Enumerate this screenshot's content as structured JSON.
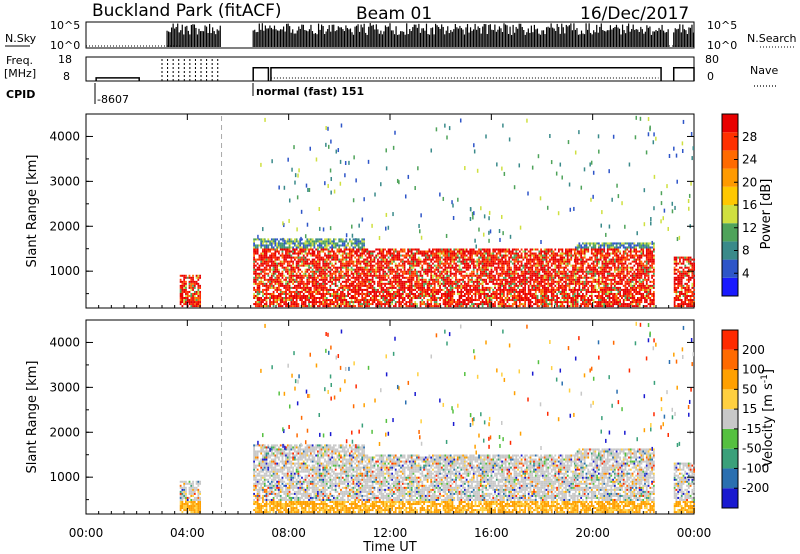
{
  "header": {
    "station": "Buckland Park (fitACF)",
    "beam": "Beam 01",
    "date": "16/Dec/2017"
  },
  "strip": {
    "nsky_label": "N.Sky",
    "nsky_ticks": [
      "10^5",
      "10^0"
    ],
    "nsearch_ticks": [
      "10^5",
      "10^0"
    ],
    "nsearch_label": "N.Search",
    "freq_label_line1": "Freq.",
    "freq_label_line2": "[MHz]",
    "freq_ticks": [
      "18",
      "8"
    ],
    "nave_ticks": [
      "80",
      "0"
    ],
    "nave_label": "Nave",
    "cpid_label": "CPID",
    "cpid_value": "-8607",
    "mode_label": "normal (fast) 151"
  },
  "axes": {
    "ylabel": "Slant Range [km]",
    "xlabel": "Time UT",
    "y_ticks": [
      "1000",
      "2000",
      "3000",
      "4000"
    ],
    "x_ticks": [
      "00:00",
      "04:00",
      "08:00",
      "12:00",
      "16:00",
      "20:00",
      "00:00"
    ]
  },
  "colorbars": {
    "power": {
      "label": "Power [dB]",
      "ticks": [
        "4",
        "8",
        "12",
        "16",
        "20",
        "24",
        "28"
      ],
      "colors": [
        "#1a1aff",
        "#2e55c8",
        "#3a8a8a",
        "#4fa35a",
        "#cfe040",
        "#ffc800",
        "#ff9a00",
        "#ff6a00",
        "#ff3000",
        "#e80000"
      ]
    },
    "velocity": {
      "label": "Velocity [m s^-1]",
      "ticks": [
        "200",
        "100",
        "50",
        "15",
        "-15",
        "-50",
        "-100",
        "-200"
      ],
      "colors": [
        "#1a1ad0",
        "#2a6fb0",
        "#3aa07a",
        "#55c040",
        "#c8c8c8",
        "#ffd040",
        "#ffa000",
        "#ff6a00",
        "#ff2a00"
      ]
    }
  },
  "chart_data": {
    "type": "heatmap",
    "title": "Buckland Park (fitACF)",
    "xlabel": "Time UT",
    "ylabel": "Slant Range [km]",
    "xlim": [
      0,
      24
    ],
    "ylim": [
      180,
      4500
    ],
    "dashed_vline_hours": 5.35,
    "series": [
      {
        "name": "Power [dB]",
        "clim": [
          0,
          30
        ]
      },
      {
        "name": "Velocity [m s^-1]",
        "clim": [
          -250,
          250
        ]
      }
    ],
    "echo_regions": [
      {
        "t_start": 3.7,
        "t_end": 4.5,
        "r_min": 200,
        "r_max": 900
      },
      {
        "t_start": 6.6,
        "t_end": 11.0,
        "r_min": 200,
        "r_max": 1700
      },
      {
        "t_start": 11.0,
        "t_end": 19.3,
        "r_min": 200,
        "r_max": 1500
      },
      {
        "t_start": 19.3,
        "t_end": 22.4,
        "r_min": 200,
        "r_max": 1600
      },
      {
        "t_start": 23.2,
        "t_end": 24.0,
        "r_min": 200,
        "r_max": 1300
      }
    ],
    "nsky_regions": [
      {
        "t_start": 3.2,
        "t_end": 5.3
      },
      {
        "t_start": 6.6,
        "t_end": 23.0
      },
      {
        "t_start": 23.2,
        "t_end": 24.0
      }
    ],
    "freq_segments": [
      {
        "t_start": 0.4,
        "t_end": 2.1,
        "mhz": 9.3
      },
      {
        "t_start": 6.6,
        "t_end": 7.2,
        "mhz": 13.5
      },
      {
        "t_start": 7.3,
        "t_end": 22.7,
        "mhz": 13.5
      },
      {
        "t_start": 23.2,
        "t_end": 24.0,
        "mhz": 13.5
      }
    ]
  }
}
